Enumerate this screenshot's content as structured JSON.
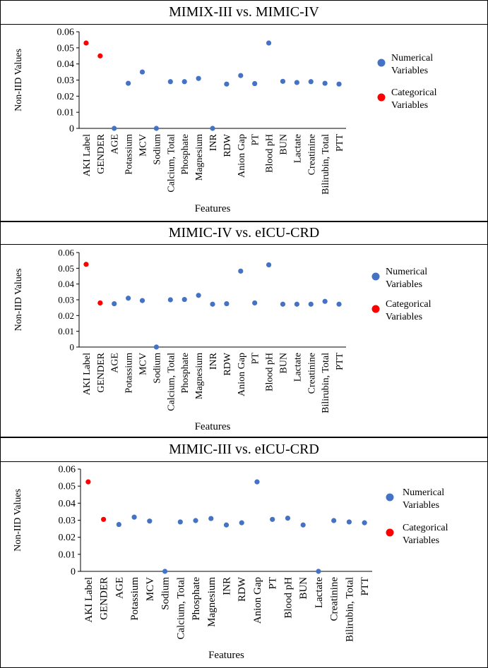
{
  "chart_data": [
    {
      "type": "scatter",
      "title": "MIMIX-III vs. MIMIC-IV",
      "xlabel": "Features",
      "ylabel": "Non-IID Values",
      "ylim": [
        0,
        0.06
      ],
      "yticks": [
        "0",
        "0.01",
        "0.02",
        "0.03",
        "0.04",
        "0.05",
        "0.06"
      ],
      "categories": [
        "AKI Label",
        "GENDER",
        "AGE",
        "Potassium",
        "MCV",
        "Sodium",
        "Calcium, Total",
        "Phosphate",
        "Magnesium",
        "INR",
        "RDW",
        "Anion Gap",
        "PT",
        "Blood pH",
        "BUN",
        "Lactate",
        "Creatinine",
        "Bilirubin, Total",
        "PTT"
      ],
      "series": [
        {
          "name": "Numerical Variables",
          "color": "#4472c4",
          "points": [
            {
              "category": "AGE",
              "value": 0.0
            },
            {
              "category": "Potassium",
              "value": 0.028
            },
            {
              "category": "MCV",
              "value": 0.035
            },
            {
              "category": "Sodium",
              "value": 0.0
            },
            {
              "category": "Calcium, Total",
              "value": 0.029
            },
            {
              "category": "Phosphate",
              "value": 0.029
            },
            {
              "category": "Magnesium",
              "value": 0.031
            },
            {
              "category": "INR",
              "value": 0.0
            },
            {
              "category": "RDW",
              "value": 0.0275
            },
            {
              "category": "Anion Gap",
              "value": 0.0328
            },
            {
              "category": "PT",
              "value": 0.0278
            },
            {
              "category": "Blood pH",
              "value": 0.053
            },
            {
              "category": "BUN",
              "value": 0.0292
            },
            {
              "category": "Lactate",
              "value": 0.0285
            },
            {
              "category": "Creatinine",
              "value": 0.029
            },
            {
              "category": "Bilirubin, Total",
              "value": 0.028
            },
            {
              "category": "PTT",
              "value": 0.0275
            }
          ]
        },
        {
          "name": "Categorical Variables",
          "color": "#ff0000",
          "points": [
            {
              "category": "AKI Label",
              "value": 0.053
            },
            {
              "category": "GENDER",
              "value": 0.045
            }
          ]
        }
      ],
      "legend": {
        "position": "right",
        "entries": [
          {
            "line1": "Numerical",
            "line2": "Variables",
            "color": "#4472c4"
          },
          {
            "line1": "Categorical",
            "line2": "Variables",
            "color": "#ff0000"
          }
        ]
      }
    },
    {
      "type": "scatter",
      "title": "MIMIC-IV vs. eICU-CRD",
      "xlabel": "Features",
      "ylabel": "Non-IID Values",
      "ylim": [
        0,
        0.06
      ],
      "yticks": [
        "0",
        "0.01",
        "0.02",
        "0.03",
        "0.04",
        "0.05",
        "0.06"
      ],
      "categories": [
        "AKI Label",
        "GENDER",
        "AGE",
        "Potassium",
        "MCV",
        "Sodium",
        "Calcium, Total",
        "Phosphate",
        "Magnesium",
        "INR",
        "RDW",
        "Anion Gap",
        "PT",
        "Blood pH",
        "BUN",
        "Lactate",
        "Creatinine",
        "Bilirubin, Total",
        "PTT"
      ],
      "series": [
        {
          "name": "Numerical Variables",
          "color": "#4472c4",
          "points": [
            {
              "category": "AGE",
              "value": 0.0275
            },
            {
              "category": "Potassium",
              "value": 0.031
            },
            {
              "category": "MCV",
              "value": 0.0295
            },
            {
              "category": "Sodium",
              "value": 0.0
            },
            {
              "category": "Calcium, Total",
              "value": 0.03
            },
            {
              "category": "Phosphate",
              "value": 0.0302
            },
            {
              "category": "Magnesium",
              "value": 0.0328
            },
            {
              "category": "INR",
              "value": 0.0272
            },
            {
              "category": "RDW",
              "value": 0.0275
            },
            {
              "category": "Anion Gap",
              "value": 0.0482
            },
            {
              "category": "PT",
              "value": 0.028
            },
            {
              "category": "Blood pH",
              "value": 0.0522
            },
            {
              "category": "BUN",
              "value": 0.0272
            },
            {
              "category": "Lactate",
              "value": 0.0272
            },
            {
              "category": "Creatinine",
              "value": 0.0272
            },
            {
              "category": "Bilirubin, Total",
              "value": 0.029
            },
            {
              "category": "PTT",
              "value": 0.0272
            }
          ]
        },
        {
          "name": "Categorical Variables",
          "color": "#ff0000",
          "points": [
            {
              "category": "AKI Label",
              "value": 0.0525
            },
            {
              "category": "GENDER",
              "value": 0.028
            }
          ]
        }
      ],
      "legend": {
        "position": "right",
        "entries": [
          {
            "line1": "Numerical",
            "line2": "Variables",
            "color": "#4472c4"
          },
          {
            "line1": "Categorical",
            "line2": "Variables",
            "color": "#ff0000"
          }
        ]
      }
    },
    {
      "type": "scatter",
      "title": "MIMIC-III vs. eICU-CRD",
      "xlabel": "Features",
      "ylabel": "Non-IID Values",
      "ylim": [
        0,
        0.06
      ],
      "yticks": [
        "0",
        "0.01",
        "0.02",
        "0.03",
        "0.04",
        "0.05",
        "0.06"
      ],
      "categories": [
        "AKI Label",
        "GENDER",
        "AGE",
        "Potassium",
        "MCV",
        "Sodium",
        "Calcium, Total",
        "Phosphate",
        "Magnesium",
        "INR",
        "RDW",
        "Anion Gap",
        "PT",
        "Blood pH",
        "BUN",
        "Lactate",
        "Creatinine",
        "Bilirubin, Total",
        "PTT"
      ],
      "series": [
        {
          "name": "Numerical Variables",
          "color": "#4472c4",
          "points": [
            {
              "category": "AGE",
              "value": 0.0275
            },
            {
              "category": "Potassium",
              "value": 0.0318
            },
            {
              "category": "MCV",
              "value": 0.0295
            },
            {
              "category": "Sodium",
              "value": 0.0
            },
            {
              "category": "Calcium, Total",
              "value": 0.029
            },
            {
              "category": "Phosphate",
              "value": 0.0298
            },
            {
              "category": "Magnesium",
              "value": 0.031
            },
            {
              "category": "INR",
              "value": 0.0272
            },
            {
              "category": "RDW",
              "value": 0.0285
            },
            {
              "category": "Anion Gap",
              "value": 0.0525
            },
            {
              "category": "PT",
              "value": 0.0305
            },
            {
              "category": "Blood pH",
              "value": 0.0312
            },
            {
              "category": "BUN",
              "value": 0.0272
            },
            {
              "category": "Lactate",
              "value": 0.0
            },
            {
              "category": "Creatinine",
              "value": 0.0298
            },
            {
              "category": "Bilirubin, Total",
              "value": 0.029
            },
            {
              "category": "PTT",
              "value": 0.0285
            }
          ]
        },
        {
          "name": "Categorical Variables",
          "color": "#ff0000",
          "points": [
            {
              "category": "AKI Label",
              "value": 0.0525
            },
            {
              "category": "GENDER",
              "value": 0.0305
            }
          ]
        }
      ],
      "legend": {
        "position": "right",
        "entries": [
          {
            "line1": "Numerical",
            "line2": "Variables",
            "color": "#4472c4"
          },
          {
            "line1": "Categorical",
            "line2": "Variables",
            "color": "#ff0000"
          }
        ]
      }
    }
  ]
}
